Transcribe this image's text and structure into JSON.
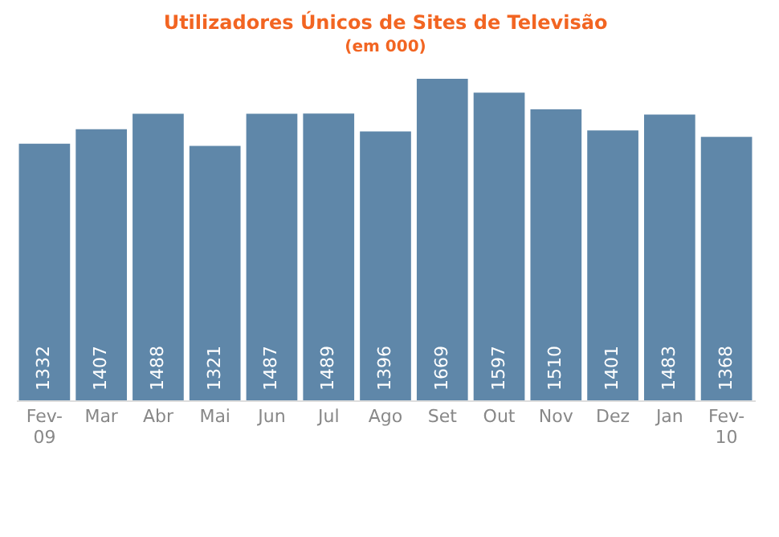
{
  "chart_data": {
    "type": "bar",
    "title": "Utilizadores Únicos de Sites de Televisão",
    "subtitle": "(em 000)",
    "categories": [
      "Fev-09",
      "Mar",
      "Abr",
      "Mai",
      "Jun",
      "Jul",
      "Ago",
      "Set",
      "Out",
      "Nov",
      "Dez",
      "Jan",
      "Fev-10"
    ],
    "values": [
      1332,
      1407,
      1488,
      1321,
      1487,
      1489,
      1396,
      1669,
      1597,
      1510,
      1401,
      1483,
      1368
    ],
    "color": "#5f87a9",
    "data_labels": true,
    "tick_labels": "x"
  }
}
